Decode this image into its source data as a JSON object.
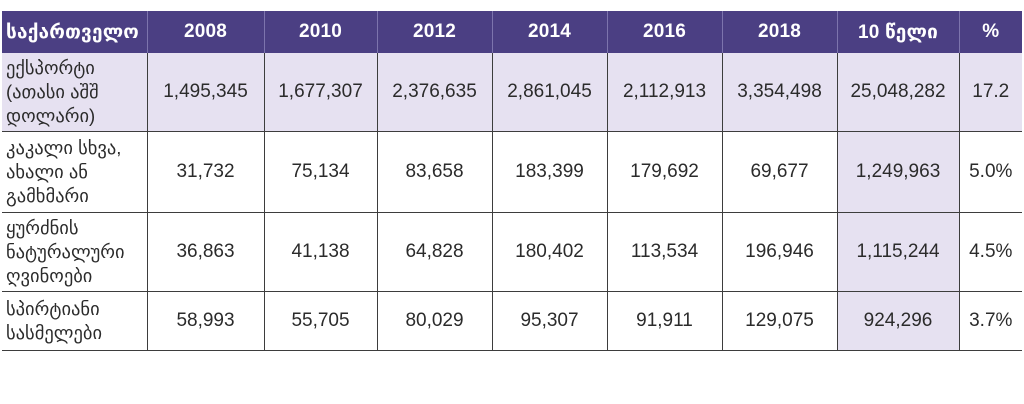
{
  "table": {
    "headers": [
      "საქართველო",
      "2008",
      "2010",
      "2012",
      "2014",
      "2016",
      "2018",
      "10 წელი",
      "%"
    ],
    "rows": [
      {
        "label": "ექსპორტი (ათასი აშშ დოლარი)",
        "values": [
          "1,495,345",
          "1,677,307",
          "2,376,635",
          "2,861,045",
          "2,112,913",
          "3,354,498",
          "25,048,282",
          "17.2"
        ]
      },
      {
        "label": "კაკალი სხვა, ახალი ან გამხმარი",
        "values": [
          "31,732",
          "75,134",
          "83,658",
          "183,399",
          "179,692",
          "69,677",
          "1,249,963",
          "5.0%"
        ]
      },
      {
        "label": "ყურძნის ნატურალური ღვინოები",
        "values": [
          "36,863",
          "41,138",
          "64,828",
          "180,402",
          "113,534",
          "196,946",
          "1,115,244",
          "4.5%"
        ]
      },
      {
        "label": "სპირტიანი სასმელები",
        "values": [
          "58,993",
          "55,705",
          "80,029",
          "95,307",
          "91,911",
          "129,075",
          "924,296",
          "3.7%"
        ]
      }
    ]
  },
  "colors": {
    "header_bg": "#4b3f83",
    "highlight_bg": "#e6e1f1"
  }
}
